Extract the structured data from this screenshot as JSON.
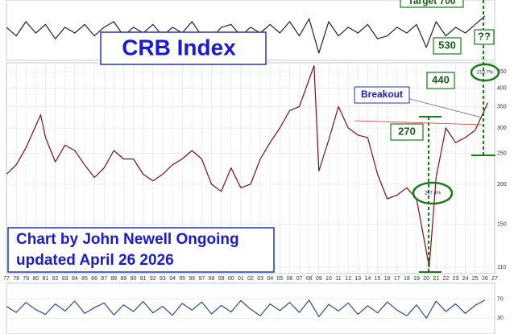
{
  "title": "CRB Index",
  "note_lines": [
    "Chart by John Newell Ongoing",
    "updated April 26 2026"
  ],
  "annotations": {
    "breakout": "Breakout",
    "level_270": "270",
    "level_440": "440",
    "level_530": "530",
    "unknown": "??",
    "target": "Target 700",
    "gain_low": "207.4%",
    "gain_high": "210.7%"
  },
  "chart_data": [
    {
      "type": "line",
      "log_scale": true,
      "color": "#7a1010",
      "grid": true,
      "x": [
        1977,
        1978,
        1979,
        1980.5,
        1981,
        1982,
        1983,
        1984,
        1985,
        1986,
        1987,
        1988,
        1989,
        1990,
        1991,
        1992,
        1993,
        1994,
        1995,
        1996,
        1997,
        1998,
        1999,
        2000,
        2001,
        2002,
        2003,
        2004,
        2005,
        2006,
        2007,
        2008.5,
        2009,
        2010,
        2011,
        2012,
        2013,
        2014,
        2015,
        2016,
        2017,
        2018,
        2019,
        2020.3,
        2021,
        2022,
        2023,
        2024,
        2025,
        2026.3
      ],
      "values": [
        215,
        230,
        260,
        330,
        280,
        235,
        265,
        255,
        230,
        210,
        225,
        255,
        240,
        240,
        215,
        205,
        215,
        230,
        240,
        255,
        240,
        200,
        190,
        225,
        195,
        200,
        240,
        270,
        300,
        340,
        350,
        470,
        220,
        275,
        350,
        300,
        285,
        280,
        215,
        180,
        185,
        195,
        180,
        110,
        210,
        300,
        270,
        280,
        295,
        360
      ],
      "xlim": [
        1977,
        2027
      ],
      "xticks": [
        {
          "value": 1977,
          "label": "77"
        },
        {
          "value": 1978,
          "label": "78"
        },
        {
          "value": 1979,
          "label": "79"
        },
        {
          "value": 1980,
          "label": "80"
        },
        {
          "value": 1981,
          "label": "81"
        },
        {
          "value": 1982,
          "label": "82"
        },
        {
          "value": 1983,
          "label": "83"
        },
        {
          "value": 1984,
          "label": "84"
        },
        {
          "value": 1985,
          "label": "85"
        },
        {
          "value": 1986,
          "label": "86"
        },
        {
          "value": 1987,
          "label": "87"
        },
        {
          "value": 1988,
          "label": "88"
        },
        {
          "value": 1989,
          "label": "89"
        },
        {
          "value": 1990,
          "label": "90"
        },
        {
          "value": 1991,
          "label": "91"
        },
        {
          "value": 1992,
          "label": "92"
        },
        {
          "value": 1993,
          "label": "93"
        },
        {
          "value": 1994,
          "label": "94"
        },
        {
          "value": 1995,
          "label": "95"
        },
        {
          "value": 1996,
          "label": "96"
        },
        {
          "value": 1997,
          "label": "97"
        },
        {
          "value": 1998,
          "label": "98"
        },
        {
          "value": 1999,
          "label": "99"
        },
        {
          "value": 2000,
          "label": "00"
        },
        {
          "value": 2001,
          "label": "01"
        },
        {
          "value": 2002,
          "label": "02"
        },
        {
          "value": 2003,
          "label": "03"
        },
        {
          "value": 2004,
          "label": "04"
        },
        {
          "value": 2005,
          "label": "05"
        },
        {
          "value": 2006,
          "label": "06"
        },
        {
          "value": 2007,
          "label": "07"
        },
        {
          "value": 2008,
          "label": "08"
        },
        {
          "value": 2009,
          "label": "09"
        },
        {
          "value": 2010,
          "label": "10"
        },
        {
          "value": 2011,
          "label": "11"
        },
        {
          "value": 2012,
          "label": "12"
        },
        {
          "value": 2013,
          "label": "13"
        },
        {
          "value": 2014,
          "label": "14"
        },
        {
          "value": 2015,
          "label": "15"
        },
        {
          "value": 2016,
          "label": "16"
        },
        {
          "value": 2017,
          "label": "17"
        },
        {
          "value": 2018,
          "label": "18"
        },
        {
          "value": 2019,
          "label": "19"
        },
        {
          "value": 2020,
          "label": "20"
        },
        {
          "value": 2021,
          "label": "21"
        },
        {
          "value": 2022,
          "label": "22"
        },
        {
          "value": 2023,
          "label": "23"
        },
        {
          "value": 2024,
          "label": "24"
        },
        {
          "value": 2025,
          "label": "25"
        },
        {
          "value": 2026,
          "label": "26"
        },
        {
          "value": 2027,
          "label": "27"
        }
      ],
      "ylim": [
        105,
        480
      ],
      "yticks": [
        110,
        150,
        200,
        250,
        300,
        350,
        400,
        450
      ]
    },
    {
      "type": "line",
      "color": "#222222",
      "grid": false,
      "x": [
        1977,
        1978,
        1979,
        1980,
        1981,
        1982,
        1983,
        1984,
        1985,
        1986,
        1987,
        1988,
        1989,
        1990,
        1991,
        1992,
        1993,
        1994,
        1995,
        1996,
        1997,
        1998,
        1999,
        2000,
        2001,
        2002,
        2003,
        2004,
        2005,
        2006,
        2007,
        2008,
        2009,
        2010,
        2011,
        2012,
        2013,
        2014,
        2015,
        2016,
        2017,
        2018,
        2019,
        2020,
        2021,
        2022,
        2023,
        2024,
        2025,
        2026
      ],
      "values": [
        1,
        -2,
        3,
        -1,
        2,
        -3,
        1,
        -1,
        2,
        -2,
        1,
        3,
        -2,
        1,
        -1,
        2,
        -2,
        1,
        -1,
        3,
        -2,
        -3,
        1,
        2,
        -2,
        1,
        -1,
        2,
        -1,
        3,
        -2,
        4,
        -8,
        3,
        -2,
        1,
        -1,
        2,
        -3,
        -2,
        1,
        -1,
        2,
        -6,
        3,
        -2,
        1,
        -1,
        2,
        5
      ],
      "xlim": [
        1977,
        2027
      ],
      "ylim": [
        -10,
        10
      ]
    },
    {
      "type": "line",
      "color": "#2a4a8a",
      "grid": false,
      "x": [
        1977,
        1978,
        1979,
        1980,
        1981,
        1982,
        1983,
        1984,
        1985,
        1986,
        1987,
        1988,
        1989,
        1990,
        1991,
        1992,
        1993,
        1994,
        1995,
        1996,
        1997,
        1998,
        1999,
        2000,
        2001,
        2002,
        2003,
        2004,
        2005,
        2006,
        2007,
        2008,
        2009,
        2010,
        2011,
        2012,
        2013,
        2014,
        2015,
        2016,
        2017,
        2018,
        2019,
        2020,
        2021,
        2022,
        2023,
        2024,
        2025,
        2026
      ],
      "values": [
        55,
        42,
        63,
        48,
        38,
        60,
        45,
        66,
        40,
        52,
        62,
        37,
        58,
        44,
        65,
        41,
        55,
        36,
        61,
        47,
        64,
        39,
        57,
        43,
        67,
        49,
        35,
        60,
        46,
        63,
        42,
        68,
        33,
        59,
        45,
        62,
        38,
        56,
        41,
        64,
        47,
        35,
        58,
        30,
        66,
        44,
        60,
        40,
        57,
        68
      ],
      "xlim": [
        1977,
        2027
      ],
      "ylim": [
        0,
        100
      ],
      "yticks": [
        30,
        70
      ]
    }
  ]
}
